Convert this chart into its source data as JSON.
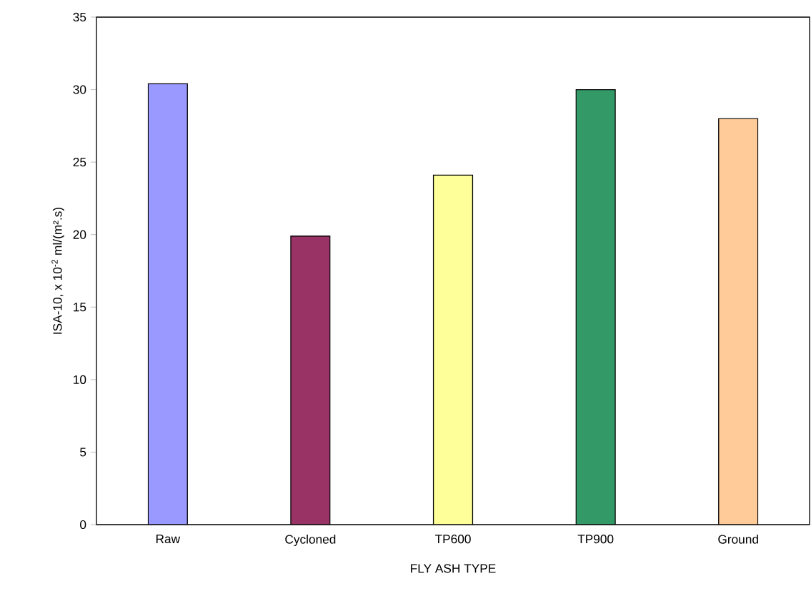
{
  "chart_data": {
    "type": "bar",
    "xlabel": "FLY ASH TYPE",
    "ylabel": "ISA-10, x 10$^{-2}$ ml/(m².s)",
    "categories": [
      "Raw",
      "Cycloned",
      "TP600",
      "TP900",
      "Ground"
    ],
    "values": [
      30.4,
      19.9,
      24.1,
      30.0,
      28.0
    ],
    "colors": [
      "#9999ff",
      "#993366",
      "#ffff99",
      "#339966",
      "#ffcc99"
    ],
    "ylim": [
      0,
      35
    ],
    "yticks": [
      0,
      5,
      10,
      15,
      20,
      25,
      30,
      35
    ],
    "grid": false
  }
}
